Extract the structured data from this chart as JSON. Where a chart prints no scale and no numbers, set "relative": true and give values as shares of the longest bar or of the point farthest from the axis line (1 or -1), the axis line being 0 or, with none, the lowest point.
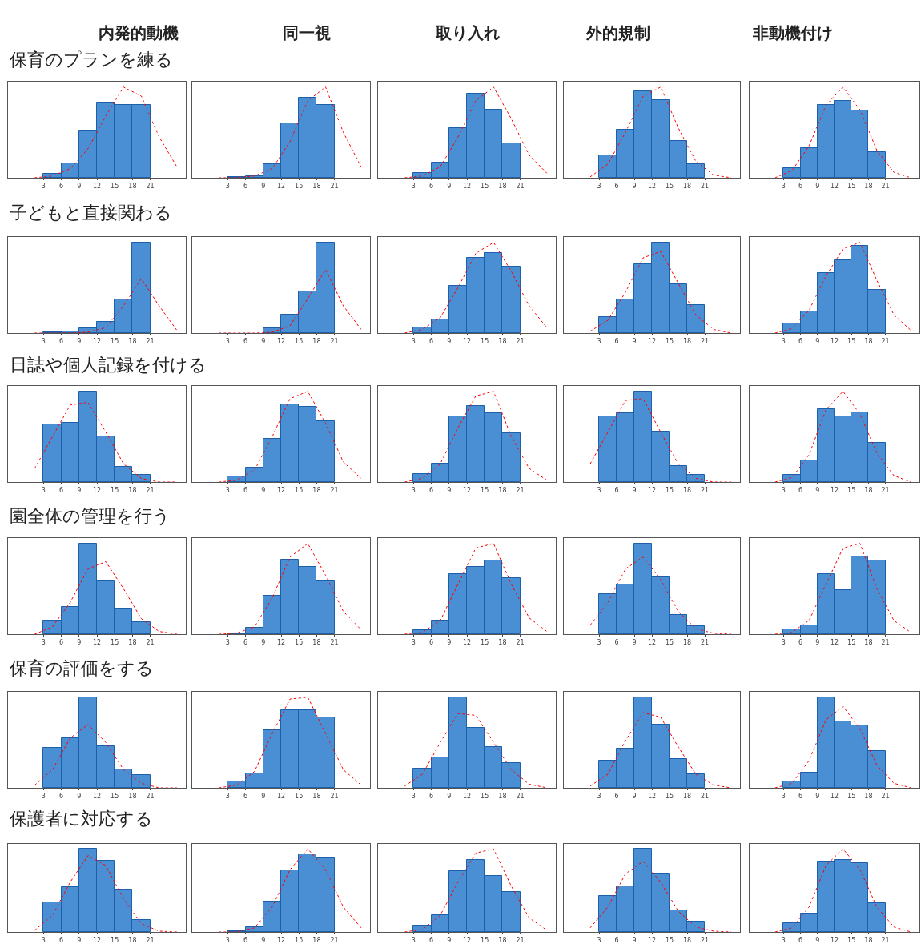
{
  "chart_data": [
    {
      "type": "histogram",
      "relative": true,
      "title": "内発的動機",
      "annotations": [
        "保育のプランを練る"
      ],
      "bins": [
        3,
        6,
        9,
        12,
        15,
        18,
        21
      ],
      "xlim": [
        -3,
        27
      ],
      "xticks": [
        3,
        6,
        9,
        12,
        15,
        18,
        21
      ],
      "series": [
        {
          "color": "#4a8fd4",
          "values": [
            0.04,
            0.16,
            0.52,
            0.82,
            0.8,
            0.8
          ]
        },
        {
          "type": "line",
          "color": "#ff0000",
          "line_style": "dotted",
          "x": [
            1.5,
            4.5,
            7.5,
            10.5,
            13.5,
            16.5,
            19.5,
            22.5,
            25.5
          ],
          "values": [
            0,
            0.02,
            0.1,
            0.32,
            0.68,
            1,
            0.9,
            0.45,
            0.12
          ]
        }
      ]
    },
    {
      "type": "histogram",
      "relative": true,
      "title": "同一視",
      "bins": [
        3,
        6,
        9,
        12,
        15,
        18,
        21
      ],
      "xlim": [
        -3,
        27
      ],
      "xticks": [
        3,
        6,
        9,
        12,
        15,
        18,
        21
      ],
      "series": [
        {
          "color": "#4a8fd4",
          "values": [
            0.01,
            0.02,
            0.15,
            0.6,
            0.88,
            0.8
          ]
        },
        {
          "type": "line",
          "color": "#ff0000",
          "line_style": "dotted",
          "x": [
            1.5,
            4.5,
            7.5,
            10.5,
            13.5,
            16.5,
            19.5,
            22.5,
            25.5
          ],
          "values": [
            0,
            0,
            0.02,
            0.1,
            0.4,
            0.85,
            1,
            0.5,
            0.12
          ]
        }
      ]
    },
    {
      "type": "histogram",
      "relative": true,
      "title": "取り入れ",
      "bins": [
        3,
        6,
        9,
        12,
        15,
        18,
        21
      ],
      "xlim": [
        -3,
        27
      ],
      "xticks": [
        3,
        6,
        9,
        12,
        15,
        18,
        21
      ],
      "series": [
        {
          "color": "#4a8fd4",
          "values": [
            0.05,
            0.17,
            0.55,
            0.93,
            0.75,
            0.38
          ]
        },
        {
          "type": "line",
          "color": "#ff0000",
          "line_style": "dotted",
          "x": [
            1.5,
            4.5,
            7.5,
            10.5,
            13.5,
            16.5,
            19.5,
            22.5,
            25.5
          ],
          "values": [
            0,
            0.02,
            0.12,
            0.45,
            0.85,
            1,
            0.65,
            0.25,
            0.05
          ]
        }
      ]
    },
    {
      "type": "histogram",
      "relative": true,
      "title": "外的規制",
      "bins": [
        3,
        6,
        9,
        12,
        15,
        18,
        21
      ],
      "xlim": [
        -3,
        27
      ],
      "xticks": [
        3,
        6,
        9,
        12,
        15,
        18,
        21
      ],
      "series": [
        {
          "color": "#4a8fd4",
          "values": [
            0.25,
            0.53,
            0.95,
            0.86,
            0.41,
            0.15
          ]
        },
        {
          "type": "line",
          "color": "#ff0000",
          "line_style": "dotted",
          "x": [
            1.5,
            4.5,
            7.5,
            10.5,
            13.5,
            16.5,
            19.5,
            22.5,
            25.5
          ],
          "values": [
            0.01,
            0.15,
            0.5,
            0.9,
            1,
            0.55,
            0.18,
            0.03,
            0
          ]
        }
      ]
    },
    {
      "type": "histogram",
      "relative": true,
      "title": "非動機付け",
      "bins": [
        3,
        6,
        9,
        12,
        15,
        18,
        21
      ],
      "xlim": [
        -3,
        27
      ],
      "xticks": [
        3,
        6,
        9,
        12,
        15,
        18,
        21
      ],
      "series": [
        {
          "color": "#4a8fd4",
          "values": [
            0.11,
            0.33,
            0.8,
            0.85,
            0.74,
            0.28
          ]
        },
        {
          "type": "line",
          "color": "#ff0000",
          "line_style": "dotted",
          "x": [
            1.5,
            4.5,
            7.5,
            10.5,
            13.5,
            16.5,
            19.5,
            22.5,
            25.5
          ],
          "values": [
            0,
            0.08,
            0.35,
            0.8,
            1,
            0.75,
            0.3,
            0.06,
            0
          ]
        }
      ]
    },
    {
      "type": "histogram",
      "relative": true,
      "annotations": [
        "子どもと直接関わる"
      ],
      "bins": [
        3,
        6,
        9,
        12,
        15,
        18,
        21
      ],
      "xlim": [
        -3,
        27
      ],
      "xticks": [
        3,
        6,
        9,
        12,
        15,
        18,
        21
      ],
      "series": [
        {
          "color": "#4a8fd4",
          "values": [
            0.01,
            0.02,
            0.05,
            0.12,
            0.37,
            1
          ]
        },
        {
          "type": "line",
          "color": "#ff0000",
          "line_style": "dotted",
          "x": [
            1.5,
            4.5,
            7.5,
            10.5,
            13.5,
            16.5,
            19.5,
            22.5,
            25.5
          ],
          "values": [
            0,
            0,
            0,
            0.01,
            0.06,
            0.3,
            0.6,
            0.3,
            0.03
          ]
        }
      ]
    },
    {
      "type": "histogram",
      "relative": true,
      "bins": [
        3,
        6,
        9,
        12,
        15,
        18,
        21
      ],
      "xlim": [
        -3,
        27
      ],
      "xticks": [
        3,
        6,
        9,
        12,
        15,
        18,
        21
      ],
      "series": [
        {
          "color": "#4a8fd4",
          "values": [
            null,
            null,
            0.05,
            0.2,
            0.46,
            1
          ]
        },
        {
          "type": "line",
          "color": "#ff0000",
          "line_style": "dotted",
          "x": [
            1.5,
            4.5,
            7.5,
            10.5,
            13.5,
            16.5,
            19.5,
            22.5,
            25.5
          ],
          "values": [
            0,
            0,
            0,
            0.01,
            0.08,
            0.38,
            0.7,
            0.3,
            0.04
          ]
        }
      ]
    },
    {
      "type": "histogram",
      "relative": true,
      "bins": [
        3,
        6,
        9,
        12,
        15,
        18,
        21
      ],
      "xlim": [
        -3,
        27
      ],
      "xticks": [
        3,
        6,
        9,
        12,
        15,
        18,
        21
      ],
      "series": [
        {
          "color": "#4a8fd4",
          "values": [
            0.06,
            0.15,
            0.52,
            0.83,
            0.88,
            0.73
          ]
        },
        {
          "type": "line",
          "color": "#ff0000",
          "line_style": "dotted",
          "x": [
            1.5,
            4.5,
            7.5,
            10.5,
            13.5,
            16.5,
            19.5,
            22.5,
            25.5
          ],
          "values": [
            0,
            0.04,
            0.17,
            0.5,
            0.88,
            1,
            0.68,
            0.3,
            0.06
          ]
        }
      ]
    },
    {
      "type": "histogram",
      "relative": true,
      "bins": [
        3,
        6,
        9,
        12,
        15,
        18,
        21
      ],
      "xlim": [
        -3,
        27
      ],
      "xticks": [
        3,
        6,
        9,
        12,
        15,
        18,
        21
      ],
      "series": [
        {
          "color": "#4a8fd4",
          "values": [
            0.18,
            0.37,
            0.76,
            1,
            0.54,
            0.31
          ]
        },
        {
          "type": "line",
          "color": "#ff0000",
          "line_style": "dotted",
          "x": [
            1.5,
            4.5,
            7.5,
            10.5,
            13.5,
            16.5,
            19.5,
            22.5,
            25.5
          ],
          "values": [
            0.02,
            0.14,
            0.45,
            0.83,
            0.9,
            0.55,
            0.2,
            0.04,
            0
          ]
        }
      ]
    },
    {
      "type": "histogram",
      "relative": true,
      "bins": [
        3,
        6,
        9,
        12,
        15,
        18,
        21
      ],
      "xlim": [
        -3,
        27
      ],
      "xticks": [
        3,
        6,
        9,
        12,
        15,
        18,
        21
      ],
      "series": [
        {
          "color": "#4a8fd4",
          "values": [
            0.11,
            0.24,
            0.66,
            0.8,
            0.96,
            0.48
          ]
        },
        {
          "type": "line",
          "color": "#ff0000",
          "line_style": "dotted",
          "x": [
            1.5,
            4.5,
            7.5,
            10.5,
            13.5,
            16.5,
            19.5,
            22.5,
            25.5
          ],
          "values": [
            0,
            0.05,
            0.25,
            0.63,
            0.93,
            1,
            0.58,
            0.2,
            0.03
          ]
        }
      ]
    },
    {
      "type": "histogram",
      "relative": true,
      "annotations": [
        "日誌や個人記録を付ける"
      ],
      "bins": [
        3,
        6,
        9,
        12,
        15,
        18,
        21
      ],
      "xlim": [
        -3,
        27
      ],
      "xticks": [
        3,
        6,
        9,
        12,
        15,
        18,
        21
      ],
      "series": [
        {
          "color": "#4a8fd4",
          "values": [
            0.64,
            0.65,
            1,
            0.5,
            0.17,
            0.08
          ]
        },
        {
          "type": "line",
          "color": "#ff0000",
          "line_style": "dotted",
          "x": [
            1.5,
            4.5,
            7.5,
            10.5,
            13.5,
            16.5,
            19.5,
            22.5,
            25.5
          ],
          "values": [
            0.15,
            0.5,
            0.85,
            0.88,
            0.55,
            0.2,
            0.04,
            0,
            0
          ]
        }
      ]
    },
    {
      "type": "histogram",
      "relative": true,
      "bins": [
        3,
        6,
        9,
        12,
        15,
        18,
        21
      ],
      "xlim": [
        -3,
        27
      ],
      "xticks": [
        3,
        6,
        9,
        12,
        15,
        18,
        21
      ],
      "series": [
        {
          "color": "#4a8fd4",
          "values": [
            0.06,
            0.16,
            0.48,
            0.86,
            0.83,
            0.67
          ]
        },
        {
          "type": "line",
          "color": "#ff0000",
          "line_style": "dotted",
          "x": [
            1.5,
            4.5,
            7.5,
            10.5,
            13.5,
            16.5,
            19.5,
            22.5,
            25.5
          ],
          "values": [
            0,
            0.02,
            0.13,
            0.5,
            0.92,
            1,
            0.65,
            0.22,
            0.04
          ]
        }
      ]
    },
    {
      "type": "histogram",
      "relative": true,
      "bins": [
        3,
        6,
        9,
        12,
        15,
        18,
        21
      ],
      "xlim": [
        -3,
        27
      ],
      "xticks": [
        3,
        6,
        9,
        12,
        15,
        18,
        21
      ],
      "series": [
        {
          "color": "#4a8fd4",
          "values": [
            0.09,
            0.2,
            0.72,
            0.84,
            0.76,
            0.54
          ]
        },
        {
          "type": "line",
          "color": "#ff0000",
          "line_style": "dotted",
          "x": [
            1.5,
            4.5,
            7.5,
            10.5,
            13.5,
            16.5,
            19.5,
            22.5,
            25.5
          ],
          "values": [
            0,
            0.04,
            0.2,
            0.6,
            0.95,
            1,
            0.5,
            0.15,
            0.02
          ]
        }
      ]
    },
    {
      "type": "histogram",
      "relative": true,
      "bins": [
        3,
        6,
        9,
        12,
        15,
        18,
        21
      ],
      "xlim": [
        -3,
        27
      ],
      "xticks": [
        3,
        6,
        9,
        12,
        15,
        18,
        21
      ],
      "series": [
        {
          "color": "#4a8fd4",
          "values": [
            0.72,
            0.76,
            1,
            0.56,
            0.18,
            0.08
          ]
        },
        {
          "type": "line",
          "color": "#ff0000",
          "line_style": "dotted",
          "x": [
            1.5,
            4.5,
            7.5,
            10.5,
            13.5,
            16.5,
            19.5,
            22.5,
            25.5
          ],
          "values": [
            0.2,
            0.55,
            0.9,
            0.92,
            0.55,
            0.2,
            0.04,
            0,
            0
          ]
        }
      ]
    },
    {
      "type": "histogram",
      "relative": true,
      "bins": [
        3,
        6,
        9,
        12,
        15,
        18,
        21
      ],
      "xlim": [
        -3,
        27
      ],
      "xticks": [
        3,
        6,
        9,
        12,
        15,
        18,
        21
      ],
      "series": [
        {
          "color": "#4a8fd4",
          "values": [
            0.08,
            0.24,
            0.8,
            0.72,
            0.77,
            0.43
          ]
        },
        {
          "type": "line",
          "color": "#ff0000",
          "line_style": "dotted",
          "x": [
            1.5,
            4.5,
            7.5,
            10.5,
            13.5,
            16.5,
            19.5,
            22.5,
            25.5
          ],
          "values": [
            0,
            0.05,
            0.3,
            0.8,
            1,
            0.75,
            0.32,
            0.07,
            0
          ]
        }
      ]
    },
    {
      "type": "histogram",
      "relative": true,
      "annotations": [
        "園全体の管理を行う"
      ],
      "bins": [
        3,
        6,
        9,
        12,
        15,
        18,
        21
      ],
      "xlim": [
        -3,
        27
      ],
      "xticks": [
        3,
        6,
        9,
        12,
        15,
        18,
        21
      ],
      "series": [
        {
          "color": "#4a8fd4",
          "values": [
            0.15,
            0.3,
            1,
            0.58,
            0.28,
            0.13
          ]
        },
        {
          "type": "line",
          "color": "#ff0000",
          "line_style": "dotted",
          "x": [
            1.5,
            4.5,
            7.5,
            10.5,
            13.5,
            16.5,
            19.5,
            22.5,
            25.5
          ],
          "values": [
            0,
            0.08,
            0.35,
            0.72,
            0.8,
            0.5,
            0.17,
            0.03,
            0
          ]
        }
      ]
    },
    {
      "type": "histogram",
      "relative": true,
      "bins": [
        3,
        6,
        9,
        12,
        15,
        18,
        21
      ],
      "xlim": [
        -3,
        27
      ],
      "xticks": [
        3,
        6,
        9,
        12,
        15,
        18,
        21
      ],
      "series": [
        {
          "color": "#4a8fd4",
          "values": [
            0.01,
            0.07,
            0.42,
            0.82,
            0.74,
            0.58
          ]
        },
        {
          "type": "line",
          "color": "#ff0000",
          "line_style": "dotted",
          "x": [
            1.5,
            4.5,
            7.5,
            10.5,
            13.5,
            16.5,
            19.5,
            22.5,
            25.5
          ],
          "values": [
            0,
            0.01,
            0.08,
            0.4,
            0.85,
            1,
            0.65,
            0.25,
            0.05
          ]
        }
      ]
    },
    {
      "type": "histogram",
      "relative": true,
      "bins": [
        3,
        6,
        9,
        12,
        15,
        18,
        21
      ],
      "xlim": [
        -3,
        27
      ],
      "xticks": [
        3,
        6,
        9,
        12,
        15,
        18,
        21
      ],
      "series": [
        {
          "color": "#4a8fd4",
          "values": [
            0.04,
            0.15,
            0.66,
            0.74,
            0.81,
            0.62
          ]
        },
        {
          "type": "line",
          "color": "#ff0000",
          "line_style": "dotted",
          "x": [
            1.5,
            4.5,
            7.5,
            10.5,
            13.5,
            16.5,
            19.5,
            22.5,
            25.5
          ],
          "values": [
            0,
            0.02,
            0.15,
            0.55,
            0.95,
            1,
            0.55,
            0.18,
            0.03
          ]
        }
      ]
    },
    {
      "type": "histogram",
      "relative": true,
      "bins": [
        3,
        6,
        9,
        12,
        15,
        18,
        21
      ],
      "xlim": [
        -3,
        27
      ],
      "xticks": [
        3,
        6,
        9,
        12,
        15,
        18,
        21
      ],
      "series": [
        {
          "color": "#4a8fd4",
          "values": [
            0.44,
            0.55,
            1,
            0.63,
            0.21,
            0.09
          ]
        },
        {
          "type": "line",
          "color": "#ff0000",
          "line_style": "dotted",
          "x": [
            1.5,
            4.5,
            7.5,
            10.5,
            13.5,
            16.5,
            19.5,
            22.5,
            25.5
          ],
          "values": [
            0.1,
            0.35,
            0.72,
            0.85,
            0.6,
            0.25,
            0.06,
            0.01,
            0
          ]
        }
      ]
    },
    {
      "type": "histogram",
      "relative": true,
      "bins": [
        3,
        6,
        9,
        12,
        15,
        18,
        21
      ],
      "xlim": [
        -3,
        27
      ],
      "xticks": [
        3,
        6,
        9,
        12,
        15,
        18,
        21
      ],
      "series": [
        {
          "color": "#4a8fd4",
          "values": [
            0.05,
            0.1,
            0.66,
            0.49,
            0.86,
            0.81
          ]
        },
        {
          "type": "line",
          "color": "#ff0000",
          "line_style": "dotted",
          "x": [
            1.5,
            4.5,
            7.5,
            10.5,
            13.5,
            16.5,
            19.5,
            22.5,
            25.5
          ],
          "values": [
            0,
            0.02,
            0.15,
            0.55,
            0.95,
            1,
            0.5,
            0.15,
            0.02
          ]
        }
      ]
    },
    {
      "type": "histogram",
      "relative": true,
      "annotations": [
        "保育の評価をする"
      ],
      "bins": [
        3,
        6,
        9,
        12,
        15,
        18,
        21
      ],
      "xlim": [
        -3,
        27
      ],
      "xticks": [
        3,
        6,
        9,
        12,
        15,
        18,
        21
      ],
      "series": [
        {
          "color": "#4a8fd4",
          "values": [
            0.44,
            0.55,
            1,
            0.46,
            0.2,
            0.14
          ]
        },
        {
          "type": "line",
          "color": "#ff0000",
          "line_style": "dotted",
          "x": [
            1.5,
            4.5,
            7.5,
            10.5,
            13.5,
            16.5,
            19.5,
            22.5,
            25.5
          ],
          "values": [
            0.03,
            0.2,
            0.55,
            0.7,
            0.5,
            0.2,
            0.05,
            0,
            0
          ]
        }
      ]
    },
    {
      "type": "histogram",
      "relative": true,
      "bins": [
        3,
        6,
        9,
        12,
        15,
        18,
        21
      ],
      "xlim": [
        -3,
        27
      ],
      "xticks": [
        3,
        6,
        9,
        12,
        15,
        18,
        21
      ],
      "series": [
        {
          "color": "#4a8fd4",
          "values": [
            0.07,
            0.16,
            0.64,
            0.86,
            0.86,
            0.78
          ]
        },
        {
          "type": "line",
          "color": "#ff0000",
          "line_style": "dotted",
          "x": [
            1.5,
            4.5,
            7.5,
            10.5,
            13.5,
            16.5,
            19.5,
            22.5,
            25.5
          ],
          "values": [
            0,
            0.03,
            0.18,
            0.6,
            0.98,
            1,
            0.6,
            0.2,
            0.03
          ]
        }
      ]
    },
    {
      "type": "histogram",
      "relative": true,
      "bins": [
        3,
        6,
        9,
        12,
        15,
        18,
        21
      ],
      "xlim": [
        -3,
        27
      ],
      "xticks": [
        3,
        6,
        9,
        12,
        15,
        18,
        21
      ],
      "series": [
        {
          "color": "#4a8fd4",
          "values": [
            0.21,
            0.34,
            1,
            0.66,
            0.45,
            0.27
          ]
        },
        {
          "type": "line",
          "color": "#ff0000",
          "line_style": "dotted",
          "x": [
            1.5,
            4.5,
            7.5,
            10.5,
            13.5,
            16.5,
            19.5,
            22.5,
            25.5
          ],
          "values": [
            0.02,
            0.15,
            0.5,
            0.82,
            0.8,
            0.5,
            0.2,
            0.04,
            0
          ]
        }
      ]
    },
    {
      "type": "histogram",
      "relative": true,
      "bins": [
        3,
        6,
        9,
        12,
        15,
        18,
        21
      ],
      "xlim": [
        -3,
        27
      ],
      "xticks": [
        3,
        6,
        9,
        12,
        15,
        18,
        21
      ],
      "series": [
        {
          "color": "#4a8fd4",
          "values": [
            0.3,
            0.43,
            1,
            0.7,
            0.32,
            0.15
          ]
        },
        {
          "type": "line",
          "color": "#ff0000",
          "line_style": "dotted",
          "x": [
            1.5,
            4.5,
            7.5,
            10.5,
            13.5,
            16.5,
            19.5,
            22.5,
            25.5
          ],
          "values": [
            0.02,
            0.15,
            0.52,
            0.83,
            0.78,
            0.45,
            0.15,
            0.03,
            0
          ]
        }
      ]
    },
    {
      "type": "histogram",
      "relative": true,
      "bins": [
        3,
        6,
        9,
        12,
        15,
        18,
        21
      ],
      "xlim": [
        -3,
        27
      ],
      "xticks": [
        3,
        6,
        9,
        12,
        15,
        18,
        21
      ],
      "series": [
        {
          "color": "#4a8fd4",
          "values": [
            0.07,
            0.17,
            1,
            0.73,
            0.69,
            0.41
          ]
        },
        {
          "type": "line",
          "color": "#ff0000",
          "line_style": "dotted",
          "x": [
            1.5,
            4.5,
            7.5,
            10.5,
            13.5,
            16.5,
            19.5,
            22.5,
            25.5
          ],
          "values": [
            0,
            0.05,
            0.3,
            0.75,
            0.9,
            0.65,
            0.25,
            0.05,
            0
          ]
        }
      ]
    },
    {
      "type": "histogram",
      "relative": true,
      "annotations": [
        "保護者に対応する"
      ],
      "bins": [
        3,
        6,
        9,
        12,
        15,
        18,
        21
      ],
      "xlim": [
        -3,
        27
      ],
      "xticks": [
        3,
        6,
        9,
        12,
        15,
        18,
        21
      ],
      "series": [
        {
          "color": "#4a8fd4",
          "values": [
            0.36,
            0.54,
            1,
            0.86,
            0.51,
            0.14
          ]
        },
        {
          "type": "line",
          "color": "#ff0000",
          "line_style": "dotted",
          "x": [
            1.5,
            4.5,
            7.5,
            10.5,
            13.5,
            16.5,
            19.5,
            22.5,
            25.5
          ],
          "values": [
            0.02,
            0.2,
            0.6,
            0.92,
            0.8,
            0.4,
            0.1,
            0.01,
            0
          ]
        }
      ]
    },
    {
      "type": "histogram",
      "relative": true,
      "bins": [
        3,
        6,
        9,
        12,
        15,
        18,
        21
      ],
      "xlim": [
        -3,
        27
      ],
      "xticks": [
        3,
        6,
        9,
        12,
        15,
        18,
        21
      ],
      "series": [
        {
          "color": "#4a8fd4",
          "values": [
            0.01,
            0.06,
            0.37,
            0.74,
            0.93,
            0.9
          ]
        },
        {
          "type": "line",
          "color": "#ff0000",
          "line_style": "dotted",
          "x": [
            1.5,
            4.5,
            7.5,
            10.5,
            13.5,
            16.5,
            19.5,
            22.5,
            25.5
          ],
          "values": [
            0,
            0,
            0.05,
            0.3,
            0.75,
            1,
            0.75,
            0.3,
            0.05
          ]
        }
      ]
    },
    {
      "type": "histogram",
      "relative": true,
      "bins": [
        3,
        6,
        9,
        12,
        15,
        18,
        21
      ],
      "xlim": [
        -3,
        27
      ],
      "xticks": [
        3,
        6,
        9,
        12,
        15,
        18,
        21
      ],
      "series": [
        {
          "color": "#4a8fd4",
          "values": [
            0.08,
            0.2,
            0.73,
            0.87,
            0.67,
            0.48
          ]
        },
        {
          "type": "line",
          "color": "#ff0000",
          "line_style": "dotted",
          "x": [
            1.5,
            4.5,
            7.5,
            10.5,
            13.5,
            16.5,
            19.5,
            22.5,
            25.5
          ],
          "values": [
            0,
            0.03,
            0.2,
            0.6,
            0.95,
            1,
            0.55,
            0.17,
            0.02
          ]
        }
      ]
    },
    {
      "type": "histogram",
      "relative": true,
      "bins": [
        3,
        6,
        9,
        12,
        15,
        18,
        21
      ],
      "xlim": [
        -3,
        27
      ],
      "xticks": [
        3,
        6,
        9,
        12,
        15,
        18,
        21
      ],
      "series": [
        {
          "color": "#4a8fd4",
          "values": [
            0.43,
            0.55,
            1,
            0.7,
            0.26,
            0.13
          ]
        },
        {
          "type": "line",
          "color": "#ff0000",
          "line_style": "dotted",
          "x": [
            1.5,
            4.5,
            7.5,
            10.5,
            13.5,
            16.5,
            19.5,
            22.5,
            25.5
          ],
          "values": [
            0.05,
            0.3,
            0.7,
            0.85,
            0.6,
            0.25,
            0.06,
            0.01,
            0
          ]
        }
      ]
    },
    {
      "type": "histogram",
      "relative": true,
      "bins": [
        3,
        6,
        9,
        12,
        15,
        18,
        21
      ],
      "xlim": [
        -3,
        27
      ],
      "xticks": [
        3,
        6,
        9,
        12,
        15,
        18,
        21
      ],
      "series": [
        {
          "color": "#4a8fd4",
          "values": [
            0.11,
            0.22,
            0.85,
            0.87,
            0.83,
            0.35
          ]
        },
        {
          "type": "line",
          "color": "#ff0000",
          "line_style": "dotted",
          "x": [
            1.5,
            4.5,
            7.5,
            10.5,
            13.5,
            16.5,
            19.5,
            22.5,
            25.5
          ],
          "values": [
            0,
            0.05,
            0.3,
            0.8,
            1,
            0.75,
            0.3,
            0.06,
            0
          ]
        }
      ]
    }
  ]
}
